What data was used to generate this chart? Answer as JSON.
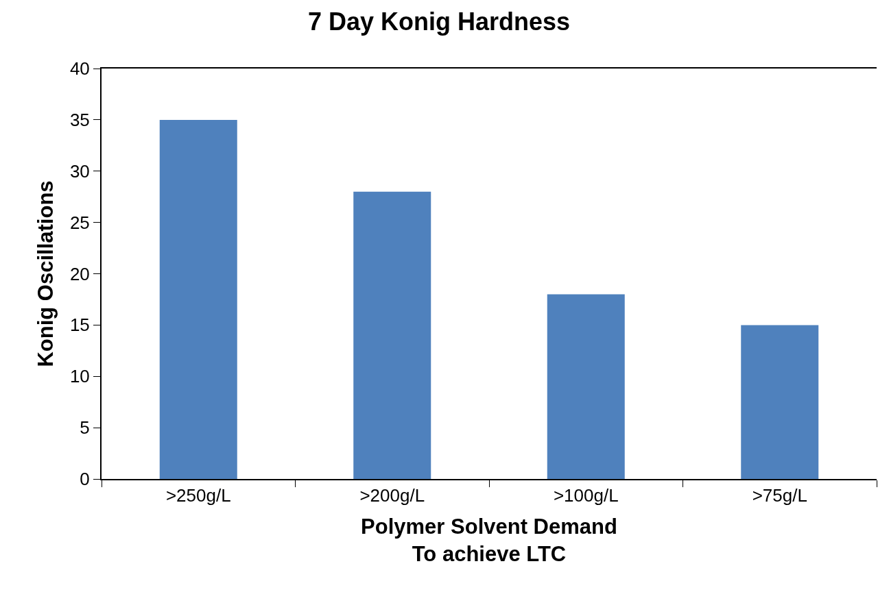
{
  "chart_data": {
    "type": "bar",
    "title": "7 Day Konig Hardness",
    "xlabel": "Polymer Solvent Demand\nTo achieve LTC",
    "ylabel": "Konig Oscillations",
    "categories": [
      ">250g/L",
      ">200g/L",
      ">100g/L",
      ">75g/L"
    ],
    "values": [
      35,
      28,
      18,
      15
    ],
    "color": "#4f81bd",
    "ylim": [
      0,
      40
    ],
    "yticks": [
      0,
      5,
      10,
      15,
      20,
      25,
      30,
      35,
      40
    ]
  }
}
